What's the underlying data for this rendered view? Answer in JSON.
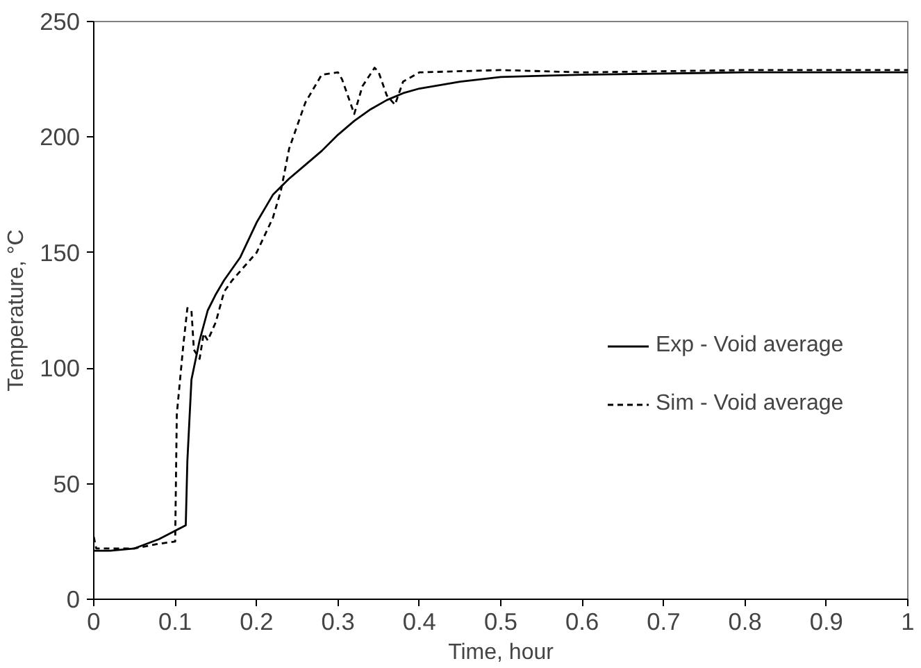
{
  "chart_data": {
    "type": "line",
    "xlabel": "Time, hour",
    "ylabel": "Temperature, °C",
    "xlim": [
      0,
      1
    ],
    "ylim": [
      0,
      250
    ],
    "xticks": [
      0,
      0.1,
      0.2,
      0.3,
      0.4,
      0.5,
      0.6,
      0.7,
      0.8,
      0.9,
      1
    ],
    "yticks": [
      0,
      50,
      100,
      150,
      200,
      250
    ],
    "grid": false,
    "legend": "right",
    "series": [
      {
        "name": "Exp - Void average",
        "color": "#000000",
        "line_style": "solid",
        "x": [
          0,
          0.02,
          0.05,
          0.08,
          0.113,
          0.115,
          0.12,
          0.13,
          0.14,
          0.15,
          0.16,
          0.18,
          0.2,
          0.22,
          0.24,
          0.26,
          0.28,
          0.3,
          0.32,
          0.34,
          0.36,
          0.38,
          0.4,
          0.45,
          0.5,
          0.6,
          0.8,
          1
        ],
        "values": [
          21,
          21,
          22,
          26,
          32,
          60,
          95,
          112,
          125,
          132,
          138,
          148,
          163,
          175,
          182,
          188,
          194,
          201,
          207,
          212,
          216,
          219,
          221,
          224,
          226,
          227,
          228,
          228
        ]
      },
      {
        "name": "Sim - Void average",
        "color": "#000000",
        "line_style": "dashed",
        "x": [
          0,
          0.003,
          0.05,
          0.08,
          0.1,
          0.102,
          0.11,
          0.115,
          0.12,
          0.123,
          0.13,
          0.135,
          0.14,
          0.15,
          0.16,
          0.17,
          0.2,
          0.22,
          0.23,
          0.24,
          0.26,
          0.28,
          0.3,
          0.305,
          0.32,
          0.33,
          0.345,
          0.35,
          0.36,
          0.37,
          0.38,
          0.4,
          0.5,
          0.6,
          0.8,
          1
        ],
        "values": [
          27,
          22,
          22,
          24,
          25,
          80,
          110,
          126,
          125,
          108,
          104,
          115,
          112,
          120,
          133,
          138,
          150,
          165,
          177,
          195,
          215,
          227,
          228,
          225,
          210,
          222,
          230,
          228,
          218,
          214,
          224,
          228,
          229,
          228,
          229,
          229
        ]
      }
    ]
  }
}
